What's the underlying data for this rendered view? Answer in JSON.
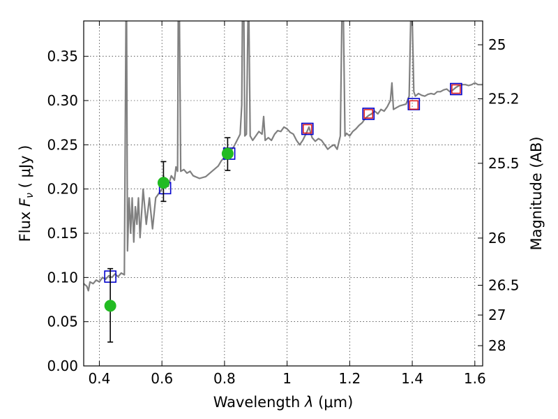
{
  "chart_data": {
    "type": "scatter",
    "xlabel_main": "Wavelength",
    "xlabel_symbol": "λ",
    "xlabel_unit": "(μm)",
    "ylabel_main": "Flux",
    "ylabel_symbol": "F",
    "ylabel_subscript": "ν",
    "ylabel_unit": "( μJy )",
    "y2label": "Magnitude (AB)",
    "xlim": [
      0.35,
      1.625
    ],
    "ylim": [
      0.0,
      0.39
    ],
    "grid": true,
    "x_ticks": [
      {
        "value": 0.4,
        "label": "0.4"
      },
      {
        "value": 0.6,
        "label": "0.6"
      },
      {
        "value": 0.8,
        "label": "0.8"
      },
      {
        "value": 1.0,
        "label": "1"
      },
      {
        "value": 1.2,
        "label": "1.2"
      },
      {
        "value": 1.4,
        "label": "1.4"
      },
      {
        "value": 1.6,
        "label": "1.6"
      }
    ],
    "y_ticks": [
      {
        "value": 0.0,
        "label": "0.00"
      },
      {
        "value": 0.05,
        "label": "0.05"
      },
      {
        "value": 0.1,
        "label": "0.10"
      },
      {
        "value": 0.15,
        "label": "0.15"
      },
      {
        "value": 0.2,
        "label": "0.20"
      },
      {
        "value": 0.25,
        "label": "0.25"
      },
      {
        "value": 0.3,
        "label": "0.30"
      },
      {
        "value": 0.35,
        "label": "0.35"
      }
    ],
    "mag_ticks": [
      {
        "mag": 25,
        "label": "25"
      },
      {
        "mag": 25.2,
        "label": "25.2"
      },
      {
        "mag": 25.5,
        "label": "25.5"
      },
      {
        "mag": 26,
        "label": "26"
      },
      {
        "mag": 26.5,
        "label": "26.5"
      },
      {
        "mag": 27,
        "label": "27"
      },
      {
        "mag": 28,
        "label": "28"
      }
    ],
    "series": [
      {
        "kind": "line",
        "color": "#808080",
        "points": [
          [
            0.35,
            0.093
          ],
          [
            0.36,
            0.09
          ],
          [
            0.365,
            0.085
          ],
          [
            0.37,
            0.095
          ],
          [
            0.38,
            0.093
          ],
          [
            0.39,
            0.097
          ],
          [
            0.4,
            0.095
          ],
          [
            0.41,
            0.1
          ],
          [
            0.42,
            0.098
          ],
          [
            0.43,
            0.102
          ],
          [
            0.44,
            0.1
          ],
          [
            0.45,
            0.104
          ],
          [
            0.46,
            0.101
          ],
          [
            0.47,
            0.105
          ],
          [
            0.48,
            0.103
          ],
          [
            0.485,
            0.39
          ],
          [
            0.487,
            0.39
          ],
          [
            0.49,
            0.13
          ],
          [
            0.495,
            0.19
          ],
          [
            0.5,
            0.15
          ],
          [
            0.505,
            0.19
          ],
          [
            0.51,
            0.14
          ],
          [
            0.515,
            0.18
          ],
          [
            0.52,
            0.16
          ],
          [
            0.525,
            0.19
          ],
          [
            0.53,
            0.145
          ],
          [
            0.54,
            0.2
          ],
          [
            0.55,
            0.16
          ],
          [
            0.56,
            0.19
          ],
          [
            0.57,
            0.155
          ],
          [
            0.58,
            0.19
          ],
          [
            0.59,
            0.195
          ],
          [
            0.6,
            0.2
          ],
          [
            0.605,
            0.215
          ],
          [
            0.61,
            0.205
          ],
          [
            0.62,
            0.203
          ],
          [
            0.63,
            0.215
          ],
          [
            0.64,
            0.21
          ],
          [
            0.645,
            0.225
          ],
          [
            0.65,
            0.22
          ],
          [
            0.652,
            0.39
          ],
          [
            0.656,
            0.39
          ],
          [
            0.66,
            0.22
          ],
          [
            0.67,
            0.222
          ],
          [
            0.68,
            0.218
          ],
          [
            0.69,
            0.22
          ],
          [
            0.7,
            0.215
          ],
          [
            0.72,
            0.212
          ],
          [
            0.74,
            0.214
          ],
          [
            0.76,
            0.22
          ],
          [
            0.78,
            0.226
          ],
          [
            0.79,
            0.232
          ],
          [
            0.8,
            0.236
          ],
          [
            0.81,
            0.244
          ],
          [
            0.82,
            0.243
          ],
          [
            0.83,
            0.248
          ],
          [
            0.84,
            0.255
          ],
          [
            0.85,
            0.262
          ],
          [
            0.855,
            0.295
          ],
          [
            0.857,
            0.39
          ],
          [
            0.862,
            0.39
          ],
          [
            0.865,
            0.26
          ],
          [
            0.87,
            0.262
          ],
          [
            0.875,
            0.39
          ],
          [
            0.878,
            0.39
          ],
          [
            0.882,
            0.26
          ],
          [
            0.89,
            0.255
          ],
          [
            0.9,
            0.26
          ],
          [
            0.91,
            0.265
          ],
          [
            0.92,
            0.262
          ],
          [
            0.925,
            0.282
          ],
          [
            0.93,
            0.255
          ],
          [
            0.94,
            0.258
          ],
          [
            0.95,
            0.255
          ],
          [
            0.96,
            0.262
          ],
          [
            0.97,
            0.266
          ],
          [
            0.98,
            0.265
          ],
          [
            0.99,
            0.27
          ],
          [
            1.0,
            0.268
          ],
          [
            1.01,
            0.264
          ],
          [
            1.02,
            0.262
          ],
          [
            1.03,
            0.255
          ],
          [
            1.04,
            0.25
          ],
          [
            1.05,
            0.255
          ],
          [
            1.06,
            0.262
          ],
          [
            1.07,
            0.27
          ],
          [
            1.08,
            0.258
          ],
          [
            1.09,
            0.254
          ],
          [
            1.1,
            0.257
          ],
          [
            1.11,
            0.255
          ],
          [
            1.12,
            0.25
          ],
          [
            1.13,
            0.245
          ],
          [
            1.14,
            0.248
          ],
          [
            1.15,
            0.25
          ],
          [
            1.16,
            0.245
          ],
          [
            1.17,
            0.26
          ],
          [
            1.175,
            0.39
          ],
          [
            1.18,
            0.39
          ],
          [
            1.185,
            0.26
          ],
          [
            1.19,
            0.263
          ],
          [
            1.2,
            0.26
          ],
          [
            1.21,
            0.265
          ],
          [
            1.22,
            0.268
          ],
          [
            1.23,
            0.272
          ],
          [
            1.24,
            0.275
          ],
          [
            1.25,
            0.28
          ],
          [
            1.26,
            0.283
          ],
          [
            1.27,
            0.285
          ],
          [
            1.28,
            0.288
          ],
          [
            1.29,
            0.285
          ],
          [
            1.3,
            0.29
          ],
          [
            1.31,
            0.288
          ],
          [
            1.32,
            0.293
          ],
          [
            1.33,
            0.3
          ],
          [
            1.335,
            0.32
          ],
          [
            1.34,
            0.29
          ],
          [
            1.35,
            0.292
          ],
          [
            1.36,
            0.294
          ],
          [
            1.37,
            0.295
          ],
          [
            1.38,
            0.296
          ],
          [
            1.39,
            0.305
          ],
          [
            1.395,
            0.39
          ],
          [
            1.4,
            0.39
          ],
          [
            1.405,
            0.31
          ],
          [
            1.41,
            0.305
          ],
          [
            1.42,
            0.308
          ],
          [
            1.43,
            0.306
          ],
          [
            1.44,
            0.305
          ],
          [
            1.45,
            0.307
          ],
          [
            1.46,
            0.308
          ],
          [
            1.47,
            0.307
          ],
          [
            1.48,
            0.31
          ],
          [
            1.49,
            0.31
          ],
          [
            1.5,
            0.312
          ],
          [
            1.51,
            0.313
          ],
          [
            1.52,
            0.31
          ],
          [
            1.53,
            0.312
          ],
          [
            1.54,
            0.315
          ],
          [
            1.55,
            0.317
          ],
          [
            1.56,
            0.318
          ],
          [
            1.57,
            0.318
          ],
          [
            1.58,
            0.317
          ],
          [
            1.59,
            0.318
          ],
          [
            1.6,
            0.32
          ],
          [
            1.61,
            0.318
          ],
          [
            1.625,
            0.318
          ]
        ]
      },
      {
        "kind": "open-square",
        "color": "#0000cc",
        "points": [
          [
            0.435,
            0.101
          ],
          [
            0.61,
            0.201
          ],
          [
            0.815,
            0.24
          ],
          [
            1.065,
            0.268
          ],
          [
            1.26,
            0.285
          ],
          [
            1.405,
            0.296
          ],
          [
            1.54,
            0.313
          ]
        ]
      },
      {
        "kind": "open-square",
        "color": "#dd2222",
        "points": [
          [
            1.065,
            0.268
          ],
          [
            1.26,
            0.285
          ],
          [
            1.405,
            0.295
          ],
          [
            1.54,
            0.313
          ]
        ]
      },
      {
        "kind": "filled-circle",
        "color": "#22bb22",
        "points": [
          [
            0.435,
            0.068
          ],
          [
            0.605,
            0.207
          ],
          [
            0.81,
            0.24
          ]
        ],
        "errors": [
          [
            0.027,
            0.11
          ],
          [
            0.186,
            0.231
          ],
          [
            0.221,
            0.258
          ]
        ]
      }
    ]
  }
}
